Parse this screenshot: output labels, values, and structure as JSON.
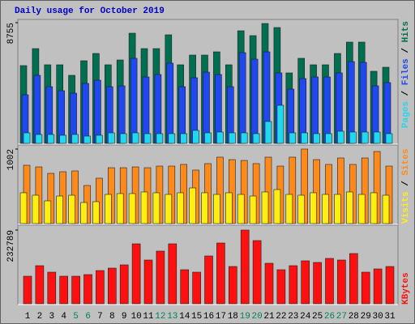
{
  "chart_data": [
    {
      "type": "bar",
      "title": "Daily usage for October 2019",
      "ylim": [
        0,
        8755
      ],
      "yticks": [
        8755
      ],
      "legend_separator": " / ",
      "series": [
        {
          "name": "Hits",
          "color": "#006f50",
          "values": [
            5641,
            6875,
            5700,
            5700,
            4936,
            5993,
            6522,
            5700,
            6052,
            7991,
            6875,
            6875,
            7874,
            5700,
            6405,
            6405,
            6640,
            5700,
            8168,
            7815,
            8696,
            8403,
            5112,
            6170,
            5700,
            5700,
            6522,
            7345,
            7345,
            5230,
            5523
          ]
        },
        {
          "name": "Files",
          "color": "#1f48f0",
          "values": [
            3526,
            4936,
            4113,
            3819,
            3643,
            4348,
            4583,
            4113,
            4172,
            6170,
            4818,
            4995,
            5817,
            4113,
            4760,
            5171,
            4995,
            4113,
            6581,
            6111,
            6640,
            5112,
            3937,
            4701,
            4818,
            4818,
            5112,
            5935,
            5876,
            4172,
            4407
          ]
        },
        {
          "name": "Pages",
          "color": "#20d8f0",
          "values": [
            764,
            646,
            646,
            588,
            646,
            529,
            588,
            764,
            705,
            764,
            705,
            705,
            705,
            705,
            940,
            764,
            823,
            764,
            764,
            705,
            1587,
            2762,
            764,
            764,
            705,
            705,
            881,
            823,
            823,
            823,
            705
          ]
        }
      ]
    },
    {
      "type": "bar",
      "ylim": [
        0,
        1002
      ],
      "yticks": [
        1002
      ],
      "legend_separator": " / ",
      "series": [
        {
          "name": "Sites",
          "color": "#ff8a1a",
          "values": [
            784,
            762,
            675,
            697,
            708,
            512,
            610,
            751,
            751,
            762,
            751,
            773,
            773,
            795,
            719,
            806,
            893,
            860,
            849,
            806,
            893,
            773,
            893,
            1002,
            860,
            795,
            882,
            795,
            882,
            969,
            773
          ]
        },
        {
          "name": "Visits",
          "color": "#ffee10",
          "values": [
            414,
            381,
            305,
            370,
            381,
            283,
            294,
            392,
            403,
            403,
            425,
            414,
            392,
            414,
            479,
            414,
            392,
            414,
            392,
            370,
            425,
            457,
            392,
            381,
            414,
            392,
            392,
            425,
            392,
            414,
            381
          ]
        }
      ]
    },
    {
      "type": "bar",
      "ylim": [
        0,
        232789
      ],
      "yticks": [
        232789
      ],
      "categories": [
        "1",
        "2",
        "3",
        "4",
        "5",
        "6",
        "7",
        "8",
        "9",
        "10",
        "11",
        "12",
        "13",
        "14",
        "15",
        "16",
        "17",
        "18",
        "19",
        "20",
        "21",
        "22",
        "23",
        "24",
        "25",
        "26",
        "27",
        "28",
        "29",
        "30",
        "31"
      ],
      "category_colors": [
        "#000000",
        "#000000",
        "#000000",
        "#000000",
        "#007f60",
        "#007f60",
        "#000000",
        "#000000",
        "#000000",
        "#000000",
        "#000000",
        "#007f60",
        "#007f60",
        "#000000",
        "#000000",
        "#000000",
        "#000000",
        "#000000",
        "#007f60",
        "#007f60",
        "#000000",
        "#000000",
        "#000000",
        "#000000",
        "#000000",
        "#007f60",
        "#007f60",
        "#000000",
        "#000000",
        "#000000",
        "#000000"
      ],
      "series": [
        {
          "name": "KBytes",
          "color": "#ff1010",
          "values": [
            86972,
            120226,
            99762,
            86972,
            86972,
            92088,
            104878,
            112552,
            122784,
            189292,
            138132,
            166270,
            189292,
            107436,
            99762,
            150922,
            191850,
            117668,
            232789,
            199524,
            127900,
            107436,
            120226,
            135574,
            130458,
            143248,
            138132,
            158596,
            99762,
            109994,
            117668
          ]
        }
      ]
    }
  ]
}
